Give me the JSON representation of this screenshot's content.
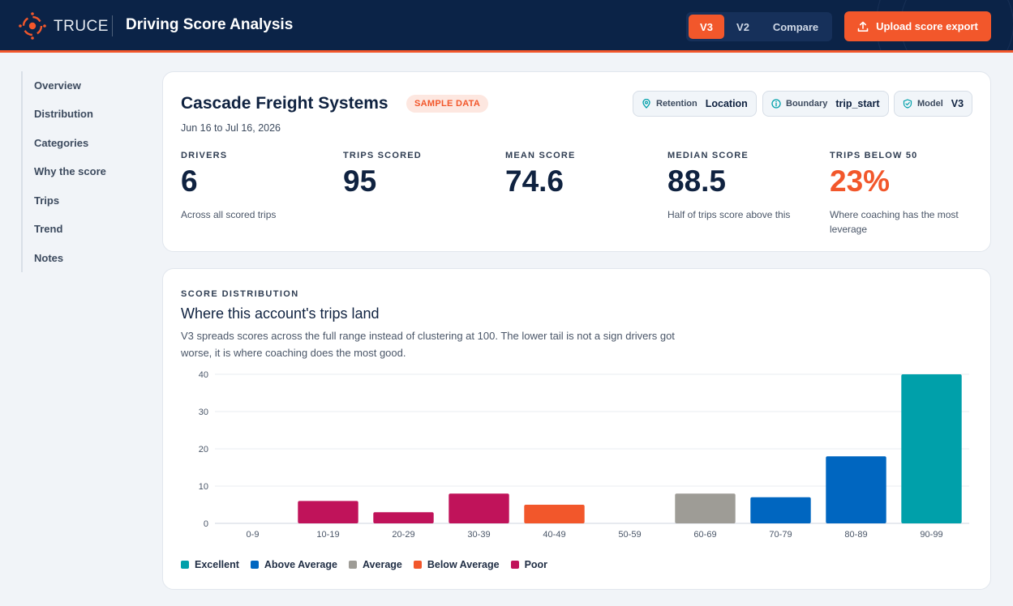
{
  "header": {
    "brand": "TRUCE",
    "title": "Driving Score Analysis",
    "versions": [
      {
        "label": "V3",
        "active": true
      },
      {
        "label": "V2",
        "active": false
      },
      {
        "label": "Compare",
        "active": false
      }
    ],
    "upload_label": "Upload score export"
  },
  "sidebar": {
    "items": [
      "Overview",
      "Distribution",
      "Categories",
      "Why the score",
      "Trips",
      "Trend",
      "Notes"
    ]
  },
  "summary": {
    "company": "Cascade Freight Systems",
    "badge": "SAMPLE DATA",
    "date_range": "Jun 16 to Jul 16, 2026",
    "chips": [
      {
        "icon": "pin-icon",
        "label": "Retention",
        "value": "Location"
      },
      {
        "icon": "info-icon",
        "label": "Boundary",
        "value": "trip_start"
      },
      {
        "icon": "shield-icon",
        "label": "Model",
        "value": "V3"
      }
    ],
    "stats": [
      {
        "label": "DRIVERS",
        "value": "6",
        "note": "Across all scored trips"
      },
      {
        "label": "TRIPS SCORED",
        "value": "95",
        "note": ""
      },
      {
        "label": "MEAN SCORE",
        "value": "74.6",
        "note": ""
      },
      {
        "label": "MEDIAN SCORE",
        "value": "88.5",
        "note": "Half of trips score above this"
      },
      {
        "label": "TRIPS BELOW 50",
        "value": "23%",
        "note": "Where coaching has the most leverage"
      }
    ]
  },
  "distribution": {
    "eyebrow": "SCORE DISTRIBUTION",
    "title": "Where this account's trips land",
    "description": "V3 spreads scores across the full range instead of clustering at 100. The lower tail is not a sign drivers got worse, it is where coaching does the most good."
  },
  "colors": {
    "accent": "#f2572b",
    "navy": "#0b2347",
    "excellent": "#00a0aa",
    "above_average": "#0066c0",
    "average": "#9e9c96",
    "below_average": "#f2572b",
    "poor": "#c0135a"
  },
  "chart_data": {
    "type": "bar",
    "categories": [
      "0-9",
      "10-19",
      "20-29",
      "30-39",
      "40-49",
      "50-59",
      "60-69",
      "70-79",
      "80-89",
      "90-99"
    ],
    "values": [
      0,
      6,
      3,
      8,
      5,
      0,
      8,
      7,
      18,
      40
    ],
    "bar_groups": [
      "Poor",
      "Poor",
      "Poor",
      "Poor",
      "Below Average",
      "Below Average",
      "Average",
      "Above Average",
      "Above Average",
      "Excellent"
    ],
    "yticks": [
      0,
      10,
      20,
      30,
      40
    ],
    "ylim": [
      0,
      40
    ],
    "grid": true,
    "legend": [
      {
        "name": "Excellent",
        "color": "#00a0aa"
      },
      {
        "name": "Above Average",
        "color": "#0066c0"
      },
      {
        "name": "Average",
        "color": "#9e9c96"
      },
      {
        "name": "Below Average",
        "color": "#f2572b"
      },
      {
        "name": "Poor",
        "color": "#c0135a"
      }
    ],
    "legend_position": "bottom-left"
  }
}
